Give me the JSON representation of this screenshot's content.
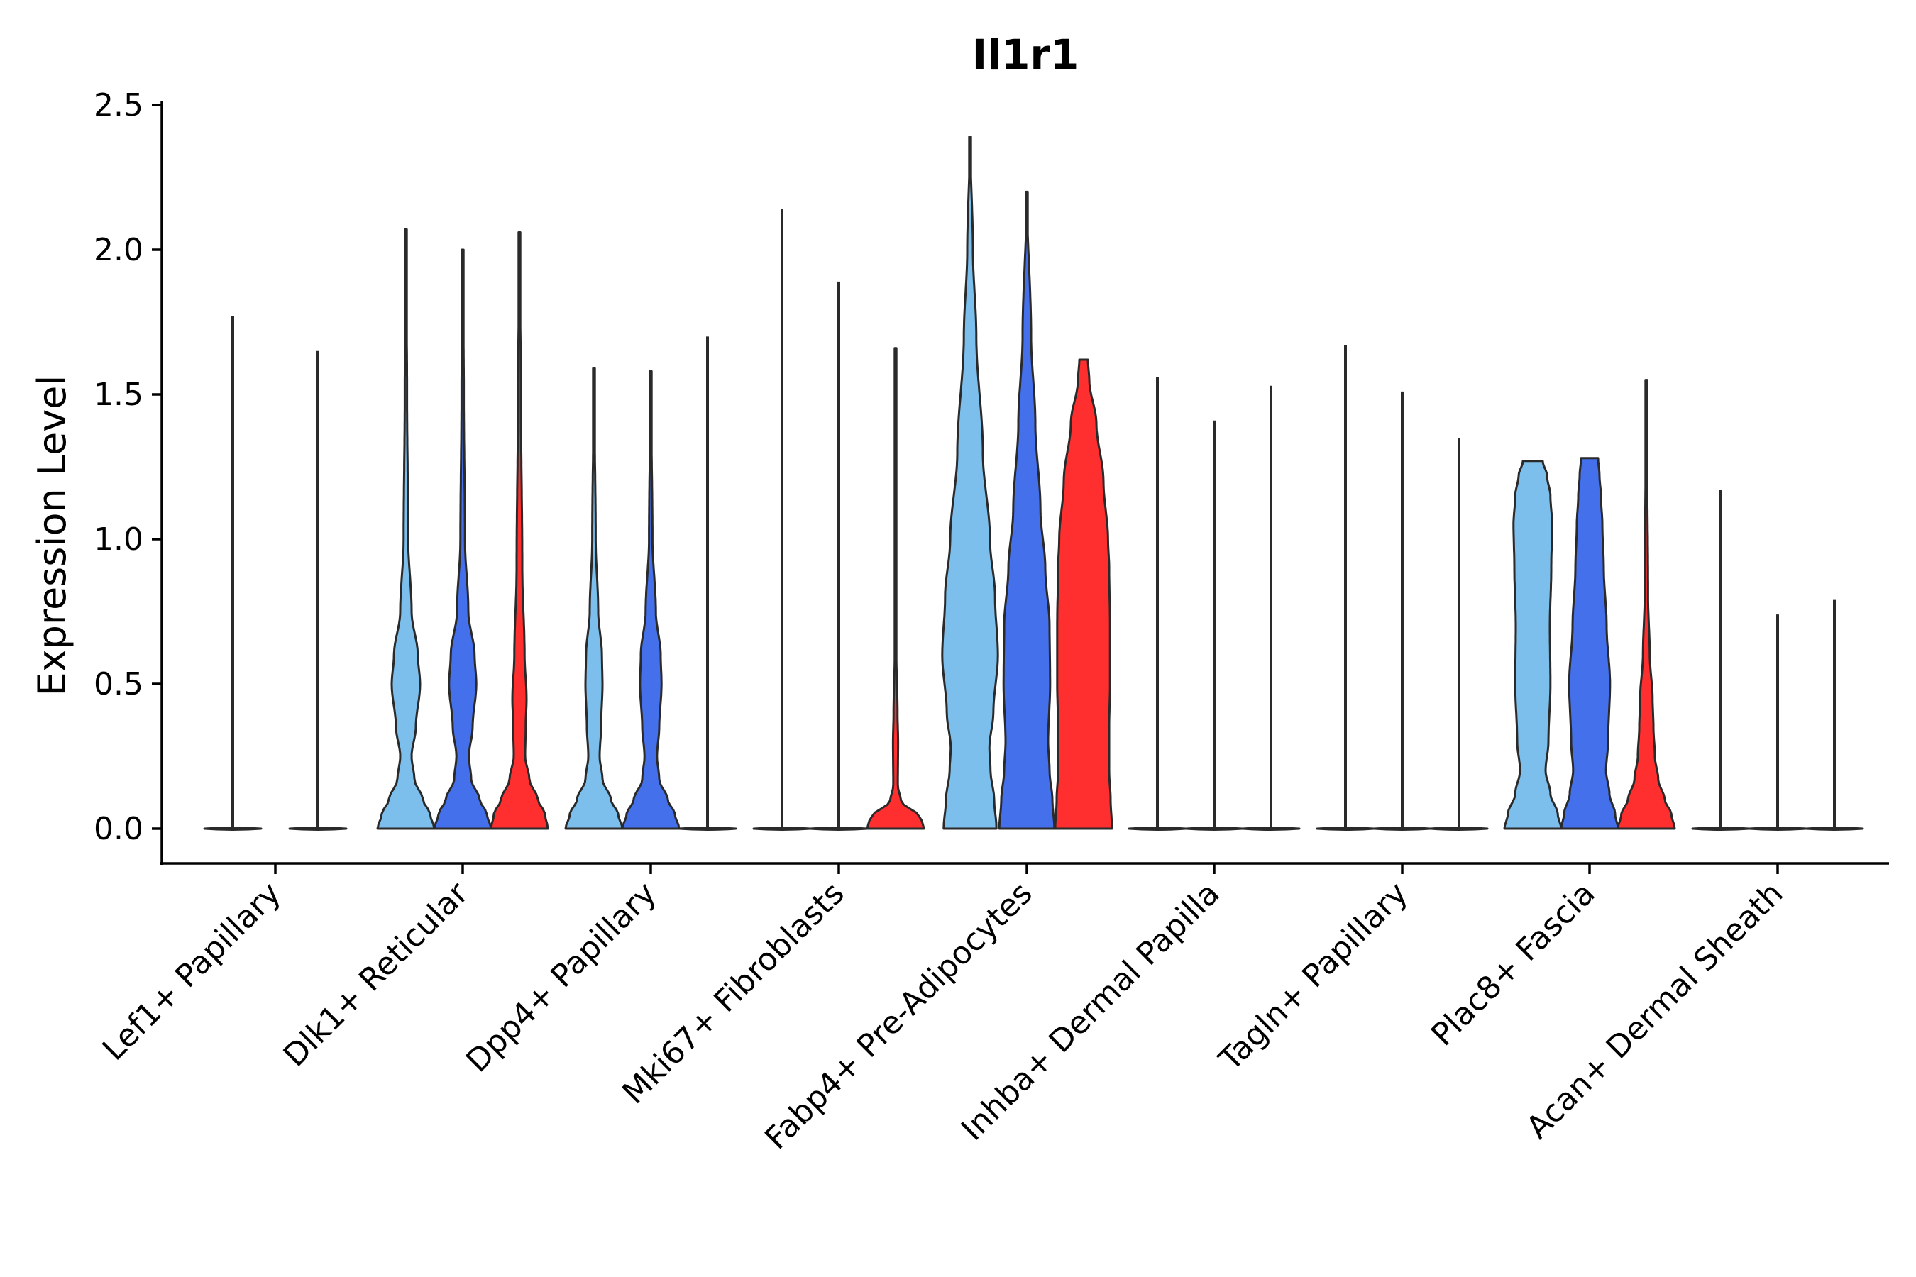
{
  "chart_data": {
    "type": "violin",
    "title": "Il1r1",
    "xlabel": "",
    "ylabel": "Expression Level",
    "ylim": [
      -0.12,
      2.55
    ],
    "yticks": [
      "0.0",
      "0.5",
      "1.0",
      "1.5",
      "2.0",
      "2.5"
    ],
    "grid": false,
    "legend": "none",
    "colors": {
      "a": "#7dbfec",
      "b": "#4570ec",
      "c": "#ff2f2f",
      "stroke": "#2a2a2a"
    },
    "categories": [
      "Lef1+ Papillary",
      "Dlk1+ Reticular",
      "Dpp4+ Papillary",
      "Mki67+ Fibroblasts",
      "Fabp4+ Pre-Adipocytes",
      "Inhba+ Dermal Papilla",
      "Tagln+ Papillary",
      "Plac8+ Fascia",
      "Acan+ Dermal Sheath"
    ],
    "groups": [
      {
        "category": "Lef1+ Papillary",
        "violins": [
          {
            "color": "a",
            "max": 1.77,
            "profile": []
          },
          {
            "color": "b",
            "max": 1.65,
            "profile": []
          }
        ]
      },
      {
        "category": "Dlk1+ Reticular",
        "violins": [
          {
            "color": "a",
            "max": 2.07,
            "profile": [
              [
                0,
                1.0
              ],
              [
                0.05,
                0.85
              ],
              [
                0.1,
                0.6
              ],
              [
                0.17,
                0.3
              ],
              [
                0.25,
                0.2
              ],
              [
                0.35,
                0.35
              ],
              [
                0.5,
                0.5
              ],
              [
                0.6,
                0.42
              ],
              [
                0.75,
                0.2
              ],
              [
                1.0,
                0.08
              ],
              [
                1.5,
                0.04
              ],
              [
                2.07,
                0
              ]
            ]
          },
          {
            "color": "b",
            "max": 2.0,
            "profile": [
              [
                0,
                1.0
              ],
              [
                0.05,
                0.85
              ],
              [
                0.1,
                0.6
              ],
              [
                0.17,
                0.3
              ],
              [
                0.25,
                0.22
              ],
              [
                0.35,
                0.35
              ],
              [
                0.5,
                0.48
              ],
              [
                0.6,
                0.42
              ],
              [
                0.75,
                0.2
              ],
              [
                1.0,
                0.08
              ],
              [
                1.5,
                0.04
              ],
              [
                2.0,
                0
              ]
            ]
          },
          {
            "color": "c",
            "max": 2.06,
            "profile": [
              [
                0,
                1.0
              ],
              [
                0.05,
                0.9
              ],
              [
                0.1,
                0.65
              ],
              [
                0.17,
                0.35
              ],
              [
                0.25,
                0.2
              ],
              [
                0.35,
                0.22
              ],
              [
                0.45,
                0.25
              ],
              [
                0.6,
                0.18
              ],
              [
                0.9,
                0.1
              ],
              [
                1.5,
                0.05
              ],
              [
                2.06,
                0
              ]
            ]
          }
        ]
      },
      {
        "category": "Dpp4+ Papillary",
        "violins": [
          {
            "color": "a",
            "max": 1.59,
            "profile": [
              [
                0,
                1.0
              ],
              [
                0.05,
                0.85
              ],
              [
                0.1,
                0.6
              ],
              [
                0.17,
                0.3
              ],
              [
                0.25,
                0.2
              ],
              [
                0.35,
                0.25
              ],
              [
                0.5,
                0.3
              ],
              [
                0.6,
                0.28
              ],
              [
                0.75,
                0.15
              ],
              [
                1.0,
                0.06
              ],
              [
                1.59,
                0
              ]
            ]
          },
          {
            "color": "b",
            "max": 1.58,
            "profile": [
              [
                0,
                1.0
              ],
              [
                0.05,
                0.85
              ],
              [
                0.1,
                0.6
              ],
              [
                0.17,
                0.3
              ],
              [
                0.25,
                0.22
              ],
              [
                0.35,
                0.3
              ],
              [
                0.5,
                0.38
              ],
              [
                0.6,
                0.35
              ],
              [
                0.75,
                0.18
              ],
              [
                1.0,
                0.06
              ],
              [
                1.58,
                0
              ]
            ]
          },
          {
            "color": "c",
            "max": 1.7,
            "profile": []
          }
        ]
      },
      {
        "category": "Mki67+ Fibroblasts",
        "violins": [
          {
            "color": "a",
            "max": 2.14,
            "profile": []
          },
          {
            "color": "b",
            "max": 1.89,
            "profile": []
          },
          {
            "color": "c",
            "max": 1.66,
            "profile": [
              [
                0,
                1.0
              ],
              [
                0.03,
                0.92
              ],
              [
                0.05,
                0.78
              ],
              [
                0.07,
                0.5
              ],
              [
                0.09,
                0.2
              ],
              [
                0.15,
                0.08
              ],
              [
                0.3,
                0.09
              ],
              [
                0.4,
                0.07
              ],
              [
                0.6,
                0.03
              ],
              [
                1.66,
                0
              ]
            ]
          }
        ]
      },
      {
        "category": "Fabp4+ Pre-Adipocytes",
        "violins": [
          {
            "color": "a",
            "max": 2.39,
            "profile": [
              [
                0,
                0.93
              ],
              [
                0.1,
                0.85
              ],
              [
                0.2,
                0.72
              ],
              [
                0.28,
                0.68
              ],
              [
                0.4,
                0.82
              ],
              [
                0.6,
                0.98
              ],
              [
                0.8,
                0.88
              ],
              [
                1.0,
                0.7
              ],
              [
                1.3,
                0.45
              ],
              [
                1.7,
                0.22
              ],
              [
                2.0,
                0.1
              ],
              [
                2.39,
                0
              ]
            ]
          },
          {
            "color": "b",
            "max": 2.2,
            "profile": [
              [
                0,
                0.97
              ],
              [
                0.1,
                0.9
              ],
              [
                0.2,
                0.8
              ],
              [
                0.3,
                0.75
              ],
              [
                0.5,
                0.82
              ],
              [
                0.7,
                0.8
              ],
              [
                0.9,
                0.65
              ],
              [
                1.1,
                0.48
              ],
              [
                1.4,
                0.3
              ],
              [
                1.7,
                0.15
              ],
              [
                2.2,
                0
              ]
            ]
          },
          {
            "color": "c",
            "max": 1.62,
            "profile": [
              [
                0,
                1.0
              ],
              [
                0.1,
                0.95
              ],
              [
                0.2,
                0.9
              ],
              [
                0.35,
                0.9
              ],
              [
                0.5,
                0.93
              ],
              [
                0.7,
                0.93
              ],
              [
                0.9,
                0.9
              ],
              [
                1.0,
                0.86
              ],
              [
                1.2,
                0.7
              ],
              [
                1.4,
                0.45
              ],
              [
                1.55,
                0.2
              ],
              [
                1.62,
                0.15
              ]
            ]
          }
        ]
      },
      {
        "category": "Inhba+ Dermal Papilla",
        "violins": [
          {
            "color": "a",
            "max": 1.56,
            "profile": []
          },
          {
            "color": "b",
            "max": 1.41,
            "profile": []
          },
          {
            "color": "c",
            "max": 1.53,
            "profile": []
          }
        ]
      },
      {
        "category": "Tagln+ Papillary",
        "violins": [
          {
            "color": "a",
            "max": 1.67,
            "profile": []
          },
          {
            "color": "b",
            "max": 1.51,
            "profile": []
          },
          {
            "color": "c",
            "max": 1.35,
            "profile": []
          }
        ]
      },
      {
        "category": "Plac8+ Fascia",
        "violins": [
          {
            "color": "a",
            "max": 1.27,
            "profile": [
              [
                0,
                1.0
              ],
              [
                0.05,
                0.88
              ],
              [
                0.12,
                0.62
              ],
              [
                0.2,
                0.45
              ],
              [
                0.3,
                0.55
              ],
              [
                0.5,
                0.62
              ],
              [
                0.7,
                0.6
              ],
              [
                0.9,
                0.65
              ],
              [
                1.05,
                0.68
              ],
              [
                1.15,
                0.62
              ],
              [
                1.22,
                0.5
              ],
              [
                1.27,
                0.35
              ]
            ]
          },
          {
            "color": "b",
            "max": 1.28,
            "profile": [
              [
                0,
                1.0
              ],
              [
                0.05,
                0.9
              ],
              [
                0.12,
                0.7
              ],
              [
                0.2,
                0.58
              ],
              [
                0.3,
                0.65
              ],
              [
                0.5,
                0.72
              ],
              [
                0.7,
                0.6
              ],
              [
                0.9,
                0.5
              ],
              [
                1.05,
                0.45
              ],
              [
                1.15,
                0.4
              ],
              [
                1.22,
                0.35
              ],
              [
                1.28,
                0.3
              ]
            ]
          },
          {
            "color": "c",
            "max": 1.55,
            "profile": [
              [
                0,
                1.0
              ],
              [
                0.05,
                0.88
              ],
              [
                0.1,
                0.65
              ],
              [
                0.17,
                0.42
              ],
              [
                0.25,
                0.3
              ],
              [
                0.35,
                0.25
              ],
              [
                0.45,
                0.22
              ],
              [
                0.6,
                0.12
              ],
              [
                0.8,
                0.06
              ],
              [
                1.55,
                0
              ]
            ]
          }
        ]
      },
      {
        "category": "Acan+ Dermal Sheath",
        "violins": [
          {
            "color": "a",
            "max": 1.17,
            "profile": []
          },
          {
            "color": "b",
            "max": 0.74,
            "profile": []
          },
          {
            "color": "c",
            "max": 0.79,
            "profile": []
          }
        ]
      }
    ]
  }
}
